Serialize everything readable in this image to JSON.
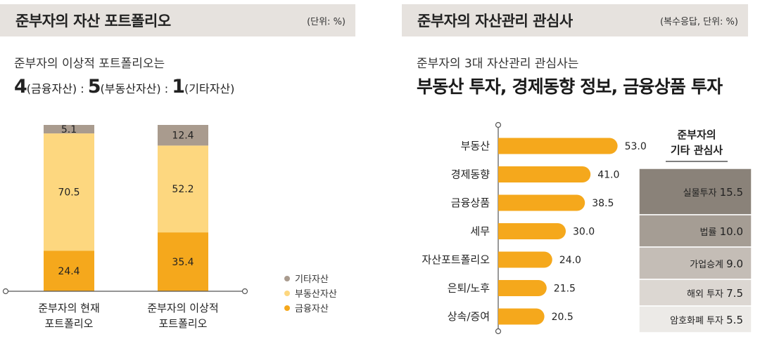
{
  "left_panel": {
    "title": "준부자의 자산 포트폴리오",
    "unit": "(단위: %)",
    "subtitle": "준부자의 이상적 포트폴리오는",
    "ratio": {
      "a_num": "4",
      "a_label": "(금융자산)",
      "sep1": ":",
      "b_num": "5",
      "b_label": "(부동산자산)",
      "sep2": ":",
      "c_num": "1",
      "c_label": "(기타자산)"
    }
  },
  "right_panel": {
    "title": "준부자의 자산관리 관심사",
    "unit": "(복수응답, 단위: %)",
    "subtitle": "준부자의 3대 자산관리 관심사는",
    "headline": "부동산 투자, 경제동향 정보, 금융상품 투자"
  },
  "colors": {
    "financial": "#f5a81c",
    "real_estate": "#fdd77f",
    "other": "#a99b8e",
    "bar": "#f5a81c",
    "header_bg": "#e6e2de"
  },
  "chart_data": [
    {
      "type": "bar",
      "stacked": true,
      "categories": [
        "준부자의 현재\n포트폴리오",
        "준부자의 이상적\n포트폴리오"
      ],
      "series": [
        {
          "name": "금융자산",
          "values": [
            24.4,
            35.4
          ],
          "color": "#f5a81c"
        },
        {
          "name": "부동산자산",
          "values": [
            70.5,
            52.2
          ],
          "color": "#fdd77f"
        },
        {
          "name": "기타자산",
          "values": [
            5.1,
            12.4
          ],
          "color": "#a99b8e"
        }
      ],
      "ylim": [
        0,
        100
      ],
      "legend": "right",
      "grid": false
    },
    {
      "type": "bar",
      "orientation": "horizontal",
      "categories": [
        "부동산",
        "경제동향",
        "금융상품",
        "세무",
        "자산포트폴리오",
        "은퇴/노후",
        "상속/증여"
      ],
      "values": [
        53.0,
        41.0,
        38.5,
        30.0,
        24.0,
        21.5,
        20.5
      ],
      "value_labels": [
        "53.0",
        "41.0",
        "38.5",
        "30.0",
        "24.0",
        "21.5",
        "20.5"
      ],
      "xlim": [
        0,
        60
      ],
      "grid": false
    },
    {
      "type": "table",
      "title": "준부자의\n기타 관심사",
      "rows": [
        {
          "label": "실물투자",
          "value": 15.5,
          "value_label": "15.5"
        },
        {
          "label": "법률",
          "value": 10.0,
          "value_label": "10.0"
        },
        {
          "label": "가업승계",
          "value": 9.0,
          "value_label": "9.0"
        },
        {
          "label": "해외 투자",
          "value": 7.5,
          "value_label": "7.5"
        },
        {
          "label": "암호화폐 투자",
          "value": 5.5,
          "value_label": "5.5"
        }
      ]
    }
  ]
}
